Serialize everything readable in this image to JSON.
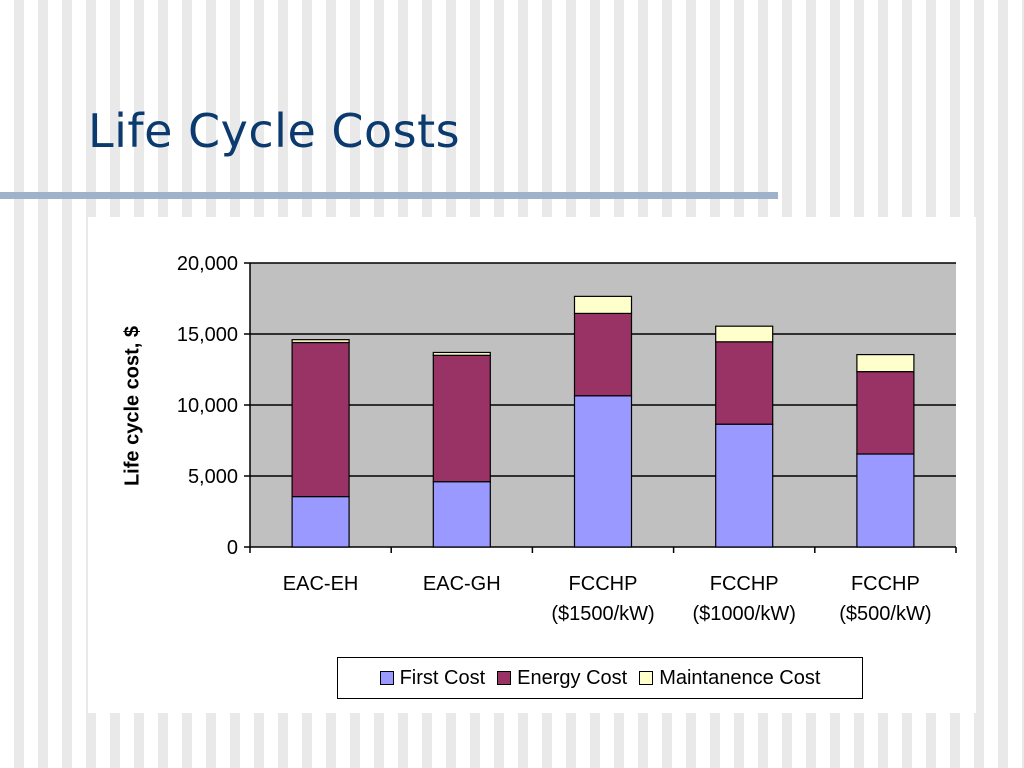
{
  "slide": {
    "title": "Life Cycle Costs"
  },
  "chart_data": {
    "type": "bar",
    "stacked": true,
    "categories": [
      [
        "EAC-EH"
      ],
      [
        "EAC-GH"
      ],
      [
        "FCCHP",
        "($1500/kW)"
      ],
      [
        "FCCHP",
        "($1000/kW)"
      ],
      [
        "FCCHP",
        "($500/kW)"
      ]
    ],
    "series": [
      {
        "name": "First Cost",
        "color": "#9999ff",
        "values": [
          3550,
          4600,
          10650,
          8650,
          6550
        ]
      },
      {
        "name": "Energy Cost",
        "color": "#993366",
        "values": [
          10850,
          8900,
          5800,
          5800,
          5800
        ]
      },
      {
        "name": "Maintanence Cost",
        "color": "#ffffcc",
        "values": [
          200,
          200,
          1200,
          1100,
          1200
        ]
      }
    ],
    "title": "",
    "xlabel": "",
    "ylabel": "Life cycle cost, $",
    "ylim": [
      0,
      20000
    ],
    "yticks": [
      0,
      5000,
      10000,
      15000,
      20000
    ],
    "ytick_labels": [
      "0",
      "5,000",
      "10,000",
      "15,000",
      "20,000"
    ],
    "grid": true,
    "plot_background": "#c0c0c0",
    "legend_placement": "bottom"
  }
}
